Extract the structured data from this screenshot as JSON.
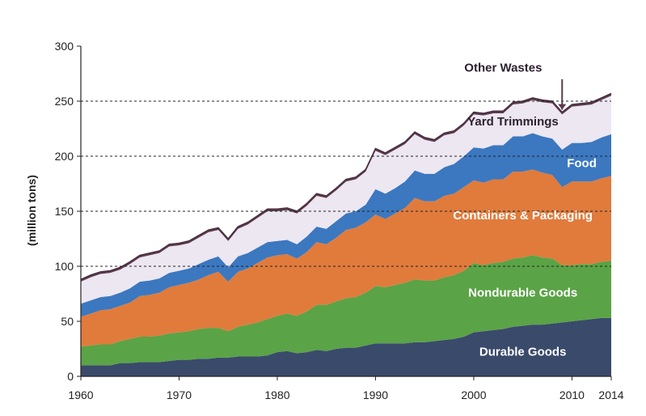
{
  "chart_data": {
    "type": "area",
    "stacked": true,
    "title": "",
    "xlabel": "",
    "ylabel": "(million tons)",
    "xlim": [
      1960,
      2014
    ],
    "ylim": [
      0,
      300
    ],
    "x_ticks": [
      1960,
      1970,
      1980,
      1990,
      2000,
      2010,
      2014
    ],
    "y_ticks": [
      0,
      50,
      100,
      150,
      200,
      250,
      300
    ],
    "gridlines": [
      100,
      150,
      200,
      250
    ],
    "x": [
      1960,
      1961,
      1962,
      1963,
      1964,
      1965,
      1966,
      1967,
      1968,
      1969,
      1970,
      1971,
      1972,
      1973,
      1974,
      1975,
      1976,
      1977,
      1978,
      1979,
      1980,
      1981,
      1982,
      1983,
      1984,
      1985,
      1986,
      1987,
      1988,
      1989,
      1990,
      1991,
      1992,
      1993,
      1994,
      1995,
      1996,
      1997,
      1998,
      1999,
      2000,
      2001,
      2002,
      2003,
      2004,
      2005,
      2006,
      2007,
      2008,
      2009,
      2010,
      2011,
      2012,
      2013,
      2014
    ],
    "series": [
      {
        "name": "Durable Goods",
        "color": "#3a4a6b",
        "label_color": "#ffffff",
        "values": [
          10,
          10,
          10,
          10,
          12,
          12,
          13,
          13,
          13,
          14,
          15,
          15,
          16,
          16,
          17,
          17,
          18,
          18,
          18,
          19,
          22,
          23,
          21,
          22,
          24,
          23,
          25,
          26,
          26,
          28,
          30,
          30,
          30,
          30,
          31,
          31,
          32,
          33,
          34,
          36,
          40,
          41,
          42,
          43,
          45,
          46,
          47,
          47,
          48,
          49,
          50,
          51,
          52,
          53,
          53
        ]
      },
      {
        "name": "Nondurable Goods",
        "color": "#5aa346",
        "label_color": "#ffffff",
        "values": [
          17,
          18,
          19,
          19,
          20,
          22,
          23,
          23,
          24,
          25,
          25,
          26,
          27,
          28,
          27,
          24,
          27,
          29,
          31,
          33,
          33,
          34,
          34,
          37,
          41,
          42,
          43,
          45,
          46,
          48,
          52,
          51,
          53,
          55,
          57,
          56,
          55,
          57,
          58,
          60,
          63,
          60,
          61,
          61,
          62,
          62,
          63,
          61,
          59,
          52,
          51,
          51,
          50,
          51,
          52
        ]
      },
      {
        "name": "Containers & Packaging",
        "color": "#e07b3c",
        "label_color": "#ffffff",
        "values": [
          27,
          29,
          31,
          32,
          32,
          33,
          37,
          38,
          39,
          42,
          43,
          44,
          45,
          48,
          51,
          45,
          50,
          51,
          54,
          56,
          55,
          54,
          52,
          54,
          57,
          55,
          58,
          62,
          63,
          64,
          65,
          62,
          65,
          68,
          74,
          72,
          72,
          74,
          74,
          76,
          75,
          75,
          76,
          75,
          79,
          78,
          78,
          77,
          76,
          71,
          76,
          75,
          75,
          76,
          77
        ]
      },
      {
        "name": "Food",
        "color": "#3b78c0",
        "label_color": "#ffffff",
        "values": [
          12,
          12,
          12,
          12,
          12,
          13,
          13,
          13,
          13,
          13,
          13,
          13,
          14,
          14,
          14,
          13,
          14,
          14,
          14,
          14,
          13,
          13,
          13,
          14,
          14,
          14,
          15,
          15,
          15,
          16,
          23,
          23,
          23,
          24,
          25,
          25,
          25,
          26,
          27,
          28,
          30,
          31,
          31,
          31,
          32,
          32,
          33,
          33,
          33,
          34,
          35,
          35,
          36,
          37,
          38
        ]
      },
      {
        "name": "Yard Trimmings",
        "color": "#ece7f1",
        "label_color": "#2e2231",
        "values": [
          20,
          21,
          21,
          21,
          21,
          22,
          22,
          23,
          23,
          24,
          23,
          23,
          24,
          25,
          24,
          24,
          25,
          26,
          27,
          28,
          27,
          27,
          28,
          28,
          28,
          28,
          28,
          29,
          29,
          30,
          35,
          35,
          35,
          34,
          33,
          31,
          29,
          29,
          28,
          28,
          30,
          30,
          29,
          29,
          29,
          30,
          30,
          31,
          32,
          32,
          33,
          34,
          34,
          34,
          35
        ]
      },
      {
        "name": "Other Wastes",
        "color": "#5b3b4e",
        "label_color": "#2e2231",
        "values": [
          2,
          2,
          2,
          2,
          2,
          2,
          2,
          2,
          2,
          2,
          2,
          2,
          2,
          2,
          2,
          2,
          2,
          2,
          2,
          2,
          2,
          2,
          2,
          2,
          2,
          2,
          2,
          2,
          2,
          2,
          2,
          2,
          2,
          2,
          2,
          2,
          2,
          2,
          2,
          2,
          2,
          2,
          2,
          2,
          2,
          2,
          2,
          2,
          2,
          2,
          2,
          2,
          2,
          2,
          2
        ]
      }
    ]
  }
}
